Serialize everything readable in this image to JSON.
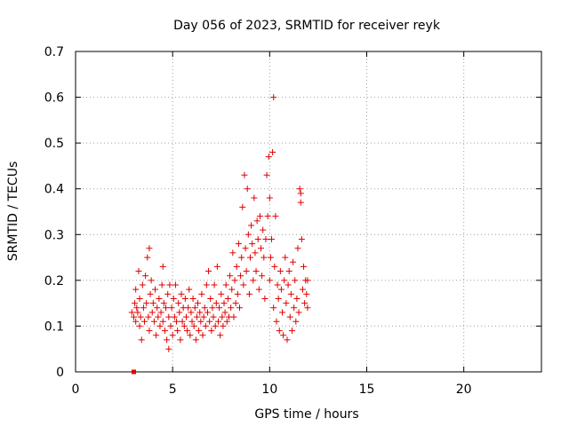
{
  "chart_data": {
    "type": "scatter",
    "title": "Day 056 of 2023, SRMTID for receiver reyk",
    "xlabel": "GPS time / hours",
    "ylabel": "SRMTID / TECUs",
    "xlim": [
      0,
      24
    ],
    "ylim": [
      0,
      0.7
    ],
    "xticks": [
      0,
      5,
      10,
      15,
      20
    ],
    "xtick_labels": [
      "0",
      "5",
      "10",
      "15",
      "20"
    ],
    "yticks": [
      0,
      0.1,
      0.2,
      0.3,
      0.4,
      0.5,
      0.6,
      0.7
    ],
    "ytick_labels": [
      "0",
      "0.1",
      "0.2",
      "0.3",
      "0.4",
      "0.5",
      "0.6",
      "0.7"
    ],
    "grid": true,
    "series": [
      {
        "name": "SRMTID",
        "color": "#e00000",
        "marker": "plus",
        "points": [
          [
            2.9,
            0.13
          ],
          [
            3.0,
            0.12
          ],
          [
            3.05,
            0.15
          ],
          [
            3.1,
            0.11
          ],
          [
            3.1,
            0.18
          ],
          [
            3.15,
            0.14
          ],
          [
            3.2,
            0.13
          ],
          [
            3.25,
            0.22
          ],
          [
            3.3,
            0.1
          ],
          [
            3.3,
            0.16
          ],
          [
            3.35,
            0.12
          ],
          [
            3.4,
            0.07
          ],
          [
            3.45,
            0.19
          ],
          [
            3.5,
            0.14
          ],
          [
            3.55,
            0.11
          ],
          [
            3.6,
            0.21
          ],
          [
            3.65,
            0.15
          ],
          [
            3.7,
            0.25
          ],
          [
            3.75,
            0.12
          ],
          [
            3.8,
            0.27
          ],
          [
            3.8,
            0.09
          ],
          [
            3.85,
            0.17
          ],
          [
            3.9,
            0.2
          ],
          [
            3.95,
            0.13
          ],
          [
            4.0,
            0.15
          ],
          [
            4.05,
            0.11
          ],
          [
            4.1,
            0.18
          ],
          [
            4.15,
            0.08
          ],
          [
            4.2,
            0.14
          ],
          [
            4.25,
            0.12
          ],
          [
            4.3,
            0.16
          ],
          [
            4.35,
            0.1
          ],
          [
            4.4,
            0.13
          ],
          [
            4.45,
            0.19
          ],
          [
            4.5,
            0.23
          ],
          [
            4.5,
            0.11
          ],
          [
            4.55,
            0.15
          ],
          [
            4.6,
            0.09
          ],
          [
            4.65,
            0.14
          ],
          [
            4.7,
            0.07
          ],
          [
            4.75,
            0.17
          ],
          [
            4.8,
            0.05
          ],
          [
            4.8,
            0.12
          ],
          [
            4.85,
            0.19
          ],
          [
            4.9,
            0.1
          ],
          [
            4.95,
            0.14
          ],
          [
            5.0,
            0.08
          ],
          [
            5.05,
            0.16
          ],
          [
            5.1,
            0.12
          ],
          [
            5.15,
            0.19
          ],
          [
            5.2,
            0.11
          ],
          [
            5.25,
            0.09
          ],
          [
            5.3,
            0.15
          ],
          [
            5.35,
            0.13
          ],
          [
            5.4,
            0.07
          ],
          [
            5.45,
            0.17
          ],
          [
            5.5,
            0.11
          ],
          [
            5.55,
            0.14
          ],
          [
            5.6,
            0.1
          ],
          [
            5.65,
            0.16
          ],
          [
            5.7,
            0.12
          ],
          [
            5.75,
            0.09
          ],
          [
            5.8,
            0.14
          ],
          [
            5.85,
            0.18
          ],
          [
            5.9,
            0.08
          ],
          [
            5.95,
            0.13
          ],
          [
            6.0,
            0.11
          ],
          [
            6.05,
            0.16
          ],
          [
            6.1,
            0.1
          ],
          [
            6.15,
            0.14
          ],
          [
            6.2,
            0.07
          ],
          [
            6.25,
            0.12
          ],
          [
            6.3,
            0.15
          ],
          [
            6.35,
            0.09
          ],
          [
            6.4,
            0.13
          ],
          [
            6.45,
            0.11
          ],
          [
            6.5,
            0.17
          ],
          [
            6.55,
            0.08
          ],
          [
            6.6,
            0.12
          ],
          [
            6.65,
            0.14
          ],
          [
            6.7,
            0.1
          ],
          [
            6.75,
            0.19
          ],
          [
            6.8,
            0.13
          ],
          [
            6.85,
            0.22
          ],
          [
            6.9,
            0.11
          ],
          [
            6.95,
            0.16
          ],
          [
            7.0,
            0.09
          ],
          [
            7.05,
            0.14
          ],
          [
            7.1,
            0.12
          ],
          [
            7.15,
            0.19
          ],
          [
            7.2,
            0.1
          ],
          [
            7.25,
            0.15
          ],
          [
            7.3,
            0.23
          ],
          [
            7.35,
            0.11
          ],
          [
            7.4,
            0.14
          ],
          [
            7.45,
            0.08
          ],
          [
            7.5,
            0.17
          ],
          [
            7.55,
            0.12
          ],
          [
            7.6,
            0.1
          ],
          [
            7.65,
            0.15
          ],
          [
            7.7,
            0.13
          ],
          [
            7.75,
            0.19
          ],
          [
            7.8,
            0.11
          ],
          [
            7.85,
            0.16
          ],
          [
            7.9,
            0.12
          ],
          [
            7.95,
            0.21
          ],
          [
            8.0,
            0.14
          ],
          [
            8.05,
            0.18
          ],
          [
            8.1,
            0.26
          ],
          [
            8.15,
            0.12
          ],
          [
            8.2,
            0.2
          ],
          [
            8.25,
            0.15
          ],
          [
            8.3,
            0.23
          ],
          [
            8.35,
            0.17
          ],
          [
            8.4,
            0.28
          ],
          [
            8.45,
            0.14
          ],
          [
            8.5,
            0.21
          ],
          [
            8.55,
            0.25
          ],
          [
            8.6,
            0.36
          ],
          [
            8.65,
            0.19
          ],
          [
            8.7,
            0.43
          ],
          [
            8.75,
            0.27
          ],
          [
            8.8,
            0.22
          ],
          [
            8.85,
            0.4
          ],
          [
            8.9,
            0.3
          ],
          [
            8.95,
            0.17
          ],
          [
            9.0,
            0.25
          ],
          [
            9.05,
            0.32
          ],
          [
            9.1,
            0.28
          ],
          [
            9.15,
            0.2
          ],
          [
            9.2,
            0.38
          ],
          [
            9.25,
            0.26
          ],
          [
            9.3,
            0.22
          ],
          [
            9.35,
            0.33
          ],
          [
            9.4,
            0.29
          ],
          [
            9.45,
            0.18
          ],
          [
            9.5,
            0.34
          ],
          [
            9.55,
            0.27
          ],
          [
            9.6,
            0.21
          ],
          [
            9.65,
            0.31
          ],
          [
            9.7,
            0.25
          ],
          [
            9.75,
            0.16
          ],
          [
            9.8,
            0.29
          ],
          [
            9.85,
            0.43
          ],
          [
            9.9,
            0.34
          ],
          [
            9.95,
            0.47
          ],
          [
            10.0,
            0.38
          ],
          [
            10.0,
            0.2
          ],
          [
            10.05,
            0.25
          ],
          [
            10.1,
            0.29
          ],
          [
            10.15,
            0.48
          ],
          [
            10.2,
            0.6
          ],
          [
            10.2,
            0.14
          ],
          [
            10.25,
            0.23
          ],
          [
            10.3,
            0.34
          ],
          [
            10.35,
            0.11
          ],
          [
            10.4,
            0.19
          ],
          [
            10.45,
            0.16
          ],
          [
            10.5,
            0.09
          ],
          [
            10.55,
            0.22
          ],
          [
            10.6,
            0.18
          ],
          [
            10.65,
            0.13
          ],
          [
            10.7,
            0.08
          ],
          [
            10.75,
            0.2
          ],
          [
            10.8,
            0.25
          ],
          [
            10.85,
            0.15
          ],
          [
            10.9,
            0.07
          ],
          [
            10.95,
            0.19
          ],
          [
            11.0,
            0.22
          ],
          [
            11.05,
            0.12
          ],
          [
            11.1,
            0.17
          ],
          [
            11.15,
            0.09
          ],
          [
            11.2,
            0.24
          ],
          [
            11.25,
            0.14
          ],
          [
            11.3,
            0.2
          ],
          [
            11.35,
            0.11
          ],
          [
            11.4,
            0.16
          ],
          [
            11.45,
            0.27
          ],
          [
            11.5,
            0.13
          ],
          [
            11.55,
            0.4
          ],
          [
            11.6,
            0.39
          ],
          [
            11.6,
            0.37
          ],
          [
            11.65,
            0.29
          ],
          [
            11.7,
            0.18
          ],
          [
            11.75,
            0.23
          ],
          [
            11.8,
            0.15
          ],
          [
            11.85,
            0.2
          ],
          [
            11.9,
            0.17
          ],
          [
            11.95,
            0.14
          ],
          [
            11.95,
            0.2
          ]
        ]
      },
      {
        "name": "gap-marker",
        "color": "#e00000",
        "marker": "square",
        "points": [
          [
            3.0,
            0.0
          ]
        ]
      }
    ]
  }
}
